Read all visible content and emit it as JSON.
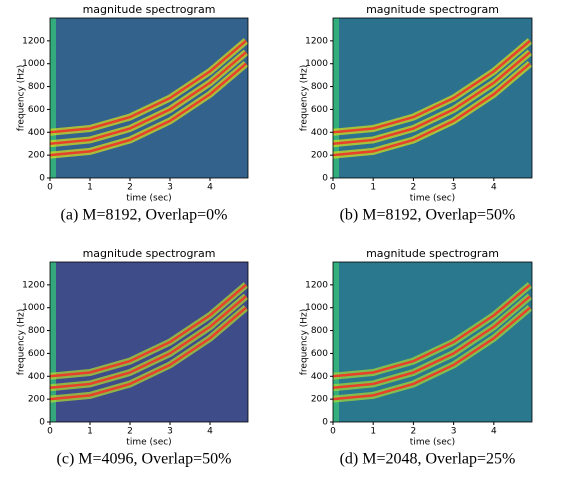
{
  "chart_data": [
    {
      "type": "spectrogram",
      "title": "magnitude spectrogram",
      "xlabel": "time (sec)",
      "ylabel": "frequency (Hz)",
      "caption": "(a) M=8192, Overlap=0%",
      "xlim": [
        0,
        4.95
      ],
      "ylim": [
        0,
        1400
      ],
      "xticks": [
        0,
        1,
        2,
        3,
        4
      ],
      "yticks": [
        0,
        200,
        400,
        600,
        800,
        1000,
        1200
      ],
      "background": "#33638d",
      "glow": "#dde318",
      "x": [
        0,
        1,
        2,
        3,
        4,
        4.9
      ],
      "series": [
        {
          "color": "#e8412b",
          "values": [
            200,
            233,
            333,
            500,
            733,
            1000
          ]
        },
        {
          "color": "#e8412b",
          "values": [
            300,
            333,
            433,
            600,
            833,
            1100
          ]
        },
        {
          "color": "#e8412b",
          "values": [
            400,
            433,
            533,
            700,
            933,
            1200
          ]
        }
      ]
    },
    {
      "type": "spectrogram",
      "title": "magnitude spectrogram",
      "xlabel": "time (sec)",
      "ylabel": "frequency (Hz)",
      "caption": "(b) M=8192, Overlap=50%",
      "xlim": [
        0,
        4.95
      ],
      "ylim": [
        0,
        1400
      ],
      "xticks": [
        0,
        1,
        2,
        3,
        4
      ],
      "yticks": [
        0,
        200,
        400,
        600,
        800,
        1000,
        1200
      ],
      "background": "#2c728e",
      "glow": "#dde318",
      "x": [
        0,
        1,
        2,
        3,
        4,
        4.9
      ],
      "series": [
        {
          "color": "#e8412b",
          "values": [
            200,
            233,
            333,
            500,
            733,
            1000
          ]
        },
        {
          "color": "#e8412b",
          "values": [
            300,
            333,
            433,
            600,
            833,
            1100
          ]
        },
        {
          "color": "#e8412b",
          "values": [
            400,
            433,
            533,
            700,
            933,
            1200
          ]
        }
      ]
    },
    {
      "type": "spectrogram",
      "title": "magnitude spectrogram",
      "xlabel": "time (sec)",
      "ylabel": "frequency (Hz)",
      "caption": "(c) M=4096, Overlap=50%",
      "xlim": [
        0,
        4.95
      ],
      "ylim": [
        0,
        1400
      ],
      "xticks": [
        0,
        1,
        2,
        3,
        4
      ],
      "yticks": [
        0,
        200,
        400,
        600,
        800,
        1000,
        1200
      ],
      "background": "#3e4c8a",
      "glow": "#b5de2b",
      "x": [
        0,
        1,
        2,
        3,
        4,
        4.9
      ],
      "series": [
        {
          "color": "#e8412b",
          "values": [
            200,
            233,
            333,
            500,
            733,
            1000
          ]
        },
        {
          "color": "#e8412b",
          "values": [
            300,
            333,
            433,
            600,
            833,
            1100
          ]
        },
        {
          "color": "#e8412b",
          "values": [
            400,
            433,
            533,
            700,
            933,
            1200
          ]
        }
      ]
    },
    {
      "type": "spectrogram",
      "title": "magnitude spectrogram",
      "xlabel": "time (sec)",
      "ylabel": "frequency (Hz)",
      "caption": "(d) M=2048, Overlap=25%",
      "xlim": [
        0,
        4.95
      ],
      "ylim": [
        0,
        1400
      ],
      "xticks": [
        0,
        1,
        2,
        3,
        4
      ],
      "yticks": [
        0,
        200,
        400,
        600,
        800,
        1000,
        1200
      ],
      "background": "#2a788e",
      "glow": "#a8db34",
      "x": [
        0,
        1,
        2,
        3,
        4,
        4.9
      ],
      "series": [
        {
          "color": "#e8412b",
          "values": [
            200,
            233,
            333,
            500,
            733,
            1000
          ]
        },
        {
          "color": "#e8412b",
          "values": [
            300,
            333,
            433,
            600,
            833,
            1100
          ]
        },
        {
          "color": "#e8412b",
          "values": [
            400,
            433,
            533,
            700,
            933,
            1200
          ]
        }
      ]
    }
  ]
}
